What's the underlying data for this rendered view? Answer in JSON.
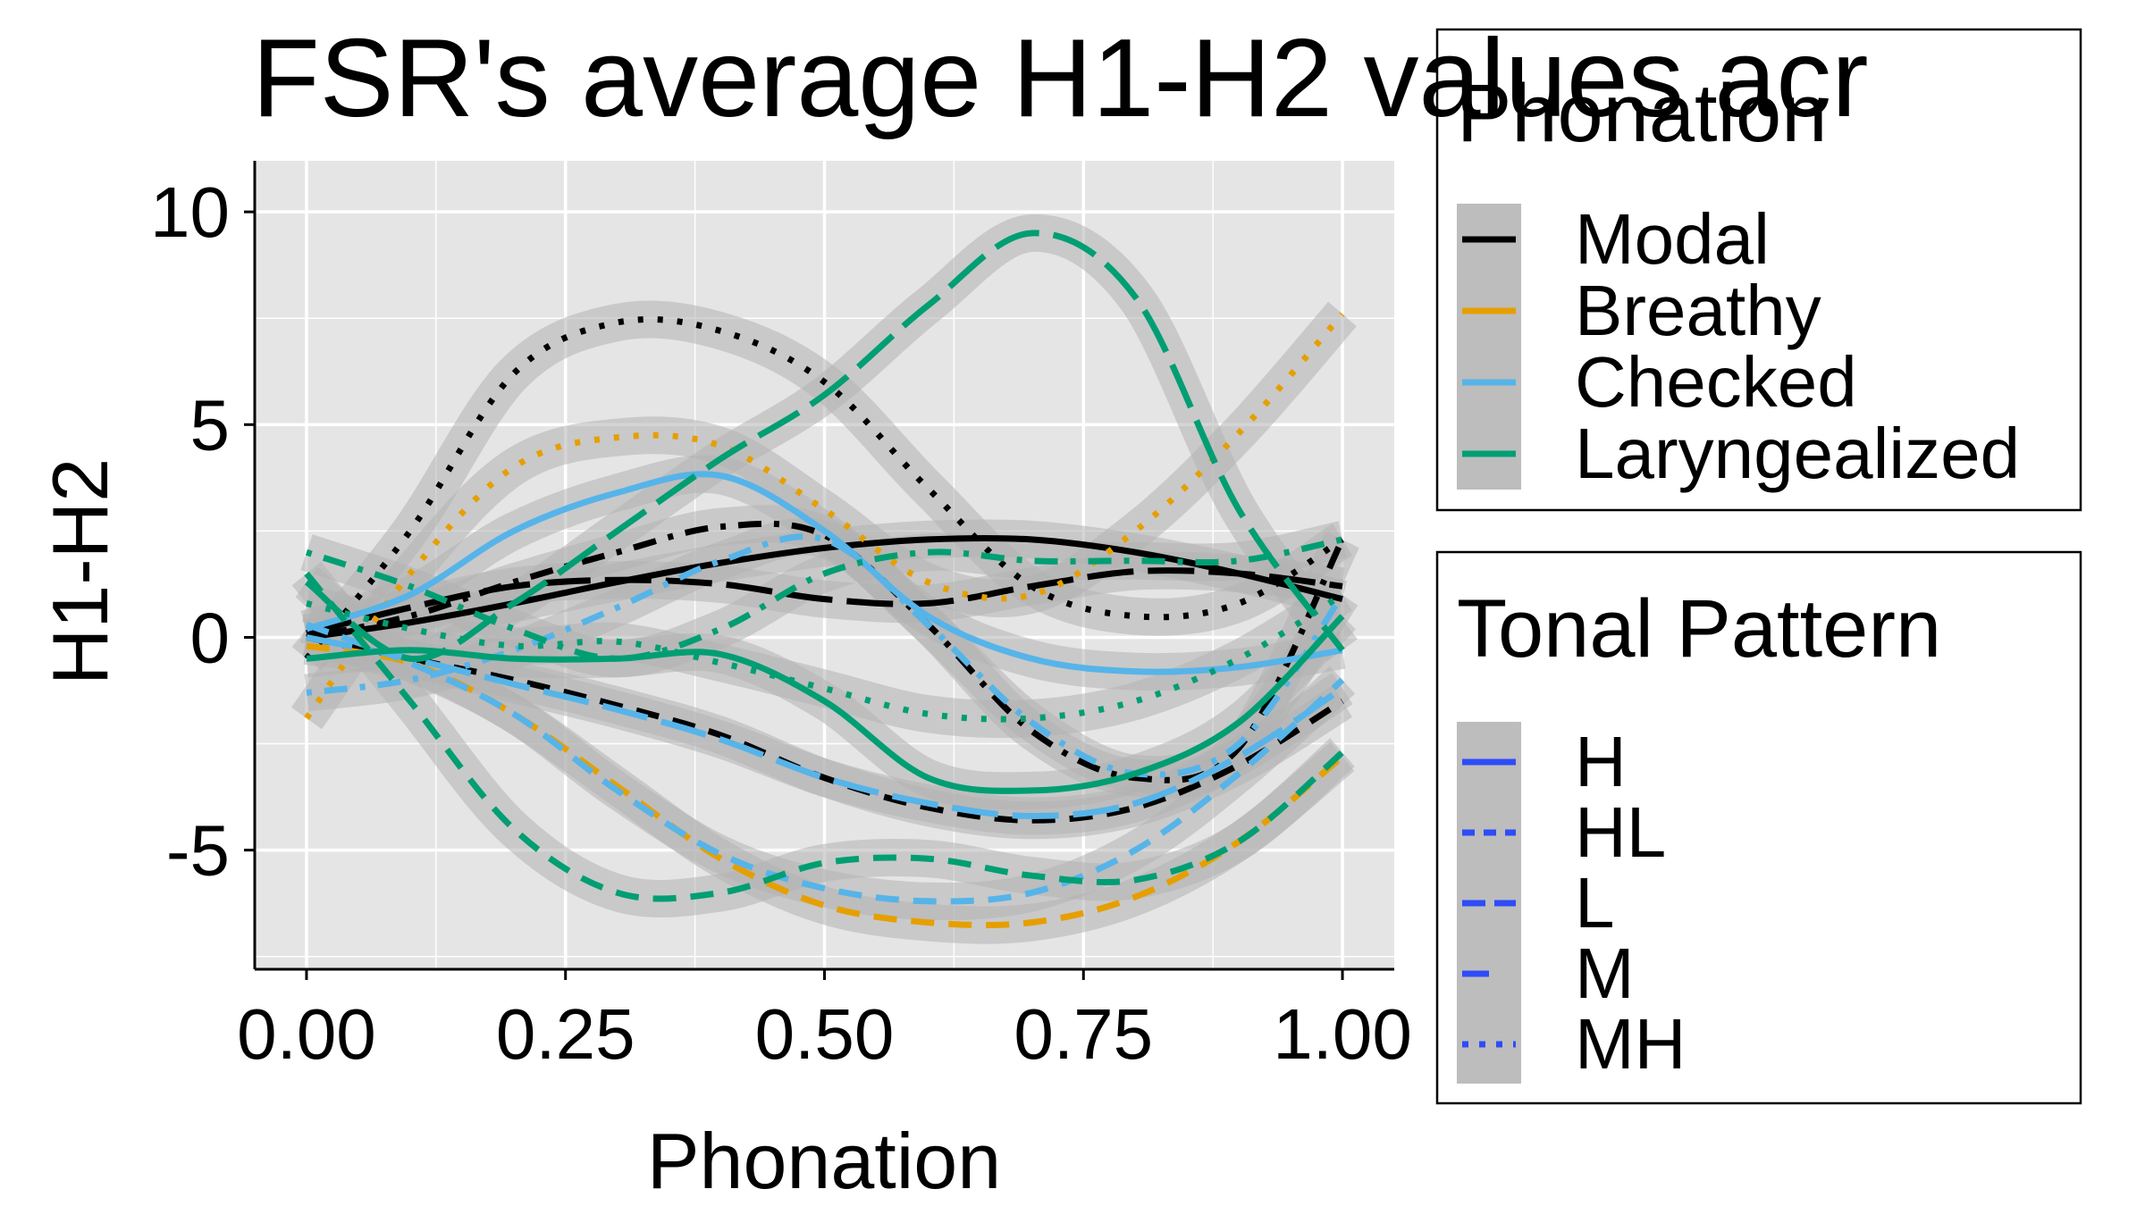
{
  "chart_data": {
    "type": "line",
    "title": "FSR's average H1-H2 values acr",
    "xlabel": "Phonation",
    "ylabel": "H1-H2",
    "xlim": [
      -0.05,
      1.05
    ],
    "ylim": [
      -7.8,
      11.2
    ],
    "x_ticks": [
      0.0,
      0.25,
      0.5,
      0.75,
      1.0
    ],
    "x_tick_labels": [
      "0.00",
      "0.25",
      "0.50",
      "0.75",
      "1.00"
    ],
    "y_ticks": [
      -5,
      0,
      5,
      10
    ],
    "y_tick_labels": [
      "-5",
      "0",
      "5",
      "10"
    ],
    "grid": true,
    "background": "#e5e5e5",
    "legends": [
      {
        "title": "Phonation",
        "entries": [
          {
            "label": "Modal",
            "color": "#000000"
          },
          {
            "label": "Breathy",
            "color": "#e69f00"
          },
          {
            "label": "Checked",
            "color": "#56b4e9"
          },
          {
            "label": "Laryngealized",
            "color": "#009e73"
          }
        ]
      },
      {
        "title": "Tonal Pattern",
        "entries": [
          {
            "label": "H",
            "dash": "solid"
          },
          {
            "label": "HL",
            "dash": "dashed"
          },
          {
            "label": "L",
            "dash": "longdash"
          },
          {
            "label": "M",
            "dash": "dotdash"
          },
          {
            "label": "MH",
            "dash": "dotted"
          }
        ]
      }
    ],
    "series": [
      {
        "phonation": "Modal",
        "tone": "H",
        "color": "#000000",
        "dash": "solid",
        "x": [
          0,
          0.1,
          0.2,
          0.3,
          0.4,
          0.5,
          0.6,
          0.7,
          0.8,
          0.9,
          1.0
        ],
        "y": [
          0.0,
          0.35,
          0.8,
          1.3,
          1.75,
          2.1,
          2.3,
          2.3,
          2.0,
          1.5,
          0.9
        ]
      },
      {
        "phonation": "Modal",
        "tone": "HL",
        "color": "#000000",
        "dash": "dashed",
        "x": [
          0,
          0.1,
          0.2,
          0.3,
          0.4,
          0.5,
          0.6,
          0.7,
          0.8,
          0.9,
          1.0
        ],
        "y": [
          0.0,
          -0.5,
          -1.0,
          -1.6,
          -2.3,
          -3.3,
          -4.0,
          -4.3,
          -4.0,
          -3.0,
          -1.5
        ]
      },
      {
        "phonation": "Modal",
        "tone": "L",
        "color": "#000000",
        "dash": "longdash",
        "x": [
          0,
          0.1,
          0.2,
          0.3,
          0.4,
          0.5,
          0.6,
          0.7,
          0.8,
          0.9,
          1.0
        ],
        "y": [
          0.1,
          0.7,
          1.2,
          1.35,
          1.25,
          0.9,
          0.8,
          1.2,
          1.55,
          1.5,
          1.2
        ]
      },
      {
        "phonation": "Modal",
        "tone": "M",
        "color": "#000000",
        "dash": "dotdash",
        "x": [
          0,
          0.1,
          0.2,
          0.3,
          0.4,
          0.5,
          0.6,
          0.7,
          0.8,
          0.9,
          1.0
        ],
        "y": [
          0.0,
          0.5,
          1.3,
          2.0,
          2.6,
          2.4,
          0.3,
          -2.2,
          -3.3,
          -2.6,
          2.3
        ]
      },
      {
        "phonation": "Modal",
        "tone": "MH",
        "color": "#000000",
        "dash": "dotted",
        "x": [
          0,
          0.1,
          0.2,
          0.3,
          0.4,
          0.5,
          0.6,
          0.7,
          0.8,
          0.9,
          1.0
        ],
        "y": [
          -0.5,
          2.5,
          6.2,
          7.4,
          7.2,
          6.0,
          3.5,
          1.2,
          0.5,
          0.8,
          2.3
        ]
      },
      {
        "phonation": "Breathy",
        "tone": "HL",
        "color": "#e69f00",
        "dash": "dashed",
        "x": [
          0,
          0.1,
          0.2,
          0.3,
          0.4,
          0.5,
          0.6,
          0.7,
          0.8,
          0.9,
          1.0
        ],
        "y": [
          -0.2,
          -0.6,
          -1.8,
          -3.5,
          -5.2,
          -6.3,
          -6.7,
          -6.7,
          -6.1,
          -4.8,
          -2.8
        ]
      },
      {
        "phonation": "Breathy",
        "tone": "MH",
        "color": "#e69f00",
        "dash": "dotted",
        "x": [
          0,
          0.1,
          0.2,
          0.3,
          0.4,
          0.5,
          0.6,
          0.7,
          0.8,
          0.9,
          1.0
        ],
        "y": [
          -1.9,
          1.5,
          4.0,
          4.7,
          4.5,
          3.0,
          1.3,
          1.0,
          2.5,
          4.8,
          7.6
        ]
      },
      {
        "phonation": "Checked",
        "tone": "H",
        "color": "#56b4e9",
        "dash": "solid",
        "x": [
          0,
          0.1,
          0.2,
          0.3,
          0.4,
          0.5,
          0.6,
          0.7,
          0.8,
          0.9,
          1.0
        ],
        "y": [
          0.2,
          1.0,
          2.5,
          3.4,
          3.8,
          2.5,
          0.5,
          -0.5,
          -0.8,
          -0.7,
          -0.3
        ]
      },
      {
        "phonation": "Checked",
        "tone": "HL",
        "color": "#56b4e9",
        "dash": "dashed",
        "x": [
          0,
          0.1,
          0.2,
          0.3,
          0.4,
          0.5,
          0.6,
          0.7,
          0.8,
          0.9,
          1.0
        ],
        "y": [
          0.3,
          -0.6,
          -1.8,
          -3.6,
          -5.1,
          -5.9,
          -6.2,
          -6.0,
          -5.0,
          -3.2,
          -1.0
        ]
      },
      {
        "phonation": "Checked",
        "tone": "L",
        "color": "#56b4e9",
        "dash": "longdash",
        "x": [
          0,
          0.1,
          0.2,
          0.3,
          0.4,
          0.5,
          0.6,
          0.7,
          0.8,
          0.9,
          1.0
        ],
        "y": [
          0.0,
          -0.5,
          -1.1,
          -1.7,
          -2.4,
          -3.3,
          -3.9,
          -4.2,
          -3.9,
          -2.8,
          -1.2
        ]
      },
      {
        "phonation": "Checked",
        "tone": "M",
        "color": "#56b4e9",
        "dash": "dotdash",
        "x": [
          0,
          0.1,
          0.2,
          0.3,
          0.4,
          0.5,
          0.6,
          0.7,
          0.8,
          0.9,
          1.0
        ],
        "y": [
          -1.3,
          -1.0,
          -0.3,
          0.7,
          1.8,
          2.3,
          0.3,
          -2.0,
          -3.2,
          -2.5,
          1.0
        ]
      },
      {
        "phonation": "Laryngealized",
        "tone": "H",
        "color": "#009e73",
        "dash": "solid",
        "x": [
          0,
          0.1,
          0.2,
          0.3,
          0.4,
          0.5,
          0.6,
          0.7,
          0.8,
          0.9,
          1.0
        ],
        "y": [
          -0.5,
          -0.3,
          -0.5,
          -0.5,
          -0.4,
          -1.5,
          -3.3,
          -3.6,
          -3.2,
          -2.0,
          0.5
        ]
      },
      {
        "phonation": "Laryngealized",
        "tone": "HL",
        "color": "#009e73",
        "dash": "dashed",
        "x": [
          0,
          0.1,
          0.2,
          0.3,
          0.4,
          0.5,
          0.6,
          0.7,
          0.8,
          0.9,
          1.0
        ],
        "y": [
          1.5,
          -1.5,
          -4.5,
          -6.0,
          -6.0,
          -5.3,
          -5.2,
          -5.6,
          -5.7,
          -4.8,
          -2.7
        ]
      },
      {
        "phonation": "Laryngealized",
        "tone": "L",
        "color": "#009e73",
        "dash": "longdash",
        "x": [
          0,
          0.1,
          0.2,
          0.3,
          0.4,
          0.5,
          0.6,
          0.7,
          0.8,
          0.9,
          1.0
        ],
        "y": [
          1.3,
          -0.5,
          0.8,
          2.5,
          4.2,
          5.7,
          7.8,
          9.5,
          8.0,
          3.0,
          -0.3
        ]
      },
      {
        "phonation": "Laryngealized",
        "tone": "M",
        "color": "#009e73",
        "dash": "dotdash",
        "x": [
          0,
          0.1,
          0.2,
          0.3,
          0.4,
          0.5,
          0.6,
          0.7,
          0.8,
          0.9,
          1.0
        ],
        "y": [
          2.0,
          1.2,
          0.2,
          -0.5,
          0.2,
          1.5,
          2.0,
          1.8,
          1.8,
          1.8,
          2.3
        ]
      },
      {
        "phonation": "Laryngealized",
        "tone": "MH",
        "color": "#009e73",
        "dash": "dotted",
        "x": [
          0,
          0.1,
          0.2,
          0.3,
          0.4,
          0.5,
          0.6,
          0.7,
          0.8,
          0.9,
          1.0
        ],
        "y": [
          0.8,
          0.2,
          -0.2,
          -0.1,
          -0.6,
          -1.2,
          -1.8,
          -1.9,
          -1.5,
          -0.5,
          1.0
        ]
      }
    ]
  }
}
